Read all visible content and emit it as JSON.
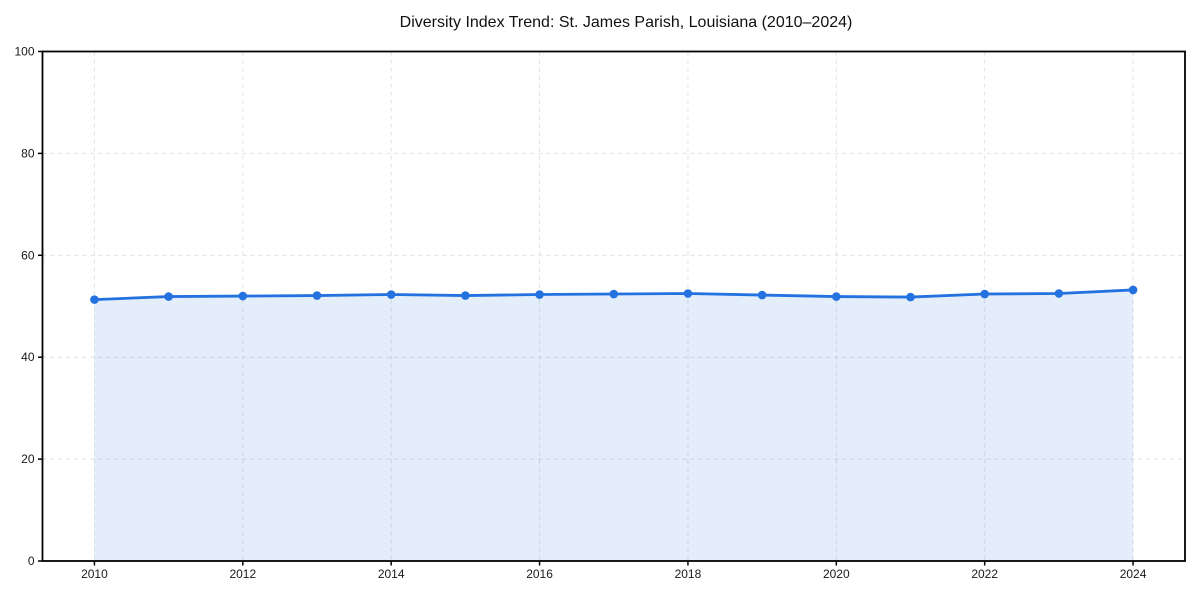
{
  "title": "Diversity Index Trend: St. James Parish, Louisiana (2010–2024)",
  "chart_data": {
    "type": "line",
    "title": "Diversity Index Trend: St. James Parish, Louisiana (2010–2024)",
    "x": [
      2010,
      2011,
      2012,
      2013,
      2014,
      2015,
      2016,
      2017,
      2018,
      2019,
      2020,
      2021,
      2022,
      2023,
      2024
    ],
    "values": [
      51.3,
      51.9,
      52.0,
      52.1,
      52.3,
      52.1,
      52.3,
      52.4,
      52.5,
      52.2,
      51.9,
      51.8,
      52.4,
      52.5,
      53.2
    ],
    "xlabel": "",
    "ylabel": "",
    "xlim": [
      2009.3,
      2024.7
    ],
    "ylim": [
      0,
      100
    ],
    "xticks": [
      2010,
      2012,
      2014,
      2016,
      2018,
      2020,
      2022,
      2024
    ],
    "yticks": [
      0,
      20,
      40,
      60,
      80,
      100
    ],
    "grid": "dashed",
    "legend": "none",
    "area_fill": true,
    "markers": true,
    "style": {
      "line_color": "#2472e0",
      "marker_color": "#2472e0",
      "fill_color": "rgba(36,114,224,0.12)",
      "grid_color": "#e0e0e0",
      "axis_color": "#000000",
      "tick_text_color": "#1a1a1a",
      "title_color": "#111111",
      "background": "#ffffff"
    }
  }
}
